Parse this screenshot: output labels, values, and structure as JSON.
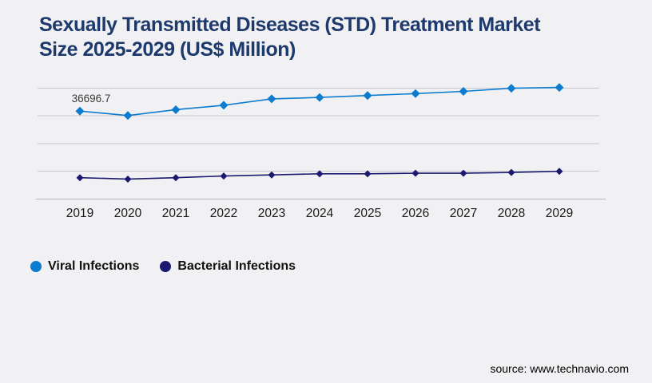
{
  "page": {
    "background": "#f1f1f4",
    "source": "source: www.technavio.com"
  },
  "title_lines": [
    "Sexually Transmitted Diseases (STD) Treatment Market",
    "Size 2025-2029 (US$ Million)"
  ],
  "colors": {
    "title": "#1e3a6d",
    "gridline": "#c9c9cc",
    "axis_line": "#b7b7ba",
    "tick_label": "#1a1a1a",
    "legend_text": "#111111",
    "data_label": "#3a3a3a"
  },
  "chart_data": {
    "type": "line",
    "title": "Sexually Transmitted Diseases (STD) Treatment Market Size 2025-2029 (US$ Million)",
    "categories": [
      "2019",
      "2020",
      "2021",
      "2022",
      "2023",
      "2024",
      "2025",
      "2026",
      "2027",
      "2028",
      "2029"
    ],
    "series": [
      {
        "name": "Viral Infections",
        "color": "#0c7cce",
        "marker": "diamond",
        "values": [
          36696.7,
          35100,
          37200,
          38800,
          41100,
          41600,
          42300,
          43000,
          43800,
          44900,
          45200
        ]
      },
      {
        "name": "Bacterial Infections",
        "color": "#1c1a70",
        "marker": "diamond",
        "values": [
          12700,
          12200,
          12700,
          13300,
          13700,
          14100,
          14100,
          14300,
          14300,
          14600,
          15000
        ]
      }
    ],
    "data_labels": [
      {
        "series_index": 0,
        "point_index": 0,
        "text": "36696.7"
      }
    ],
    "ylim": [
      5000,
      45000
    ],
    "gridline_values": [
      5000,
      15000,
      25000,
      35000,
      45000
    ],
    "grid": true,
    "y_axis_labels_visible": false,
    "legend_position": "bottom-left",
    "xlabel": "",
    "ylabel": ""
  }
}
